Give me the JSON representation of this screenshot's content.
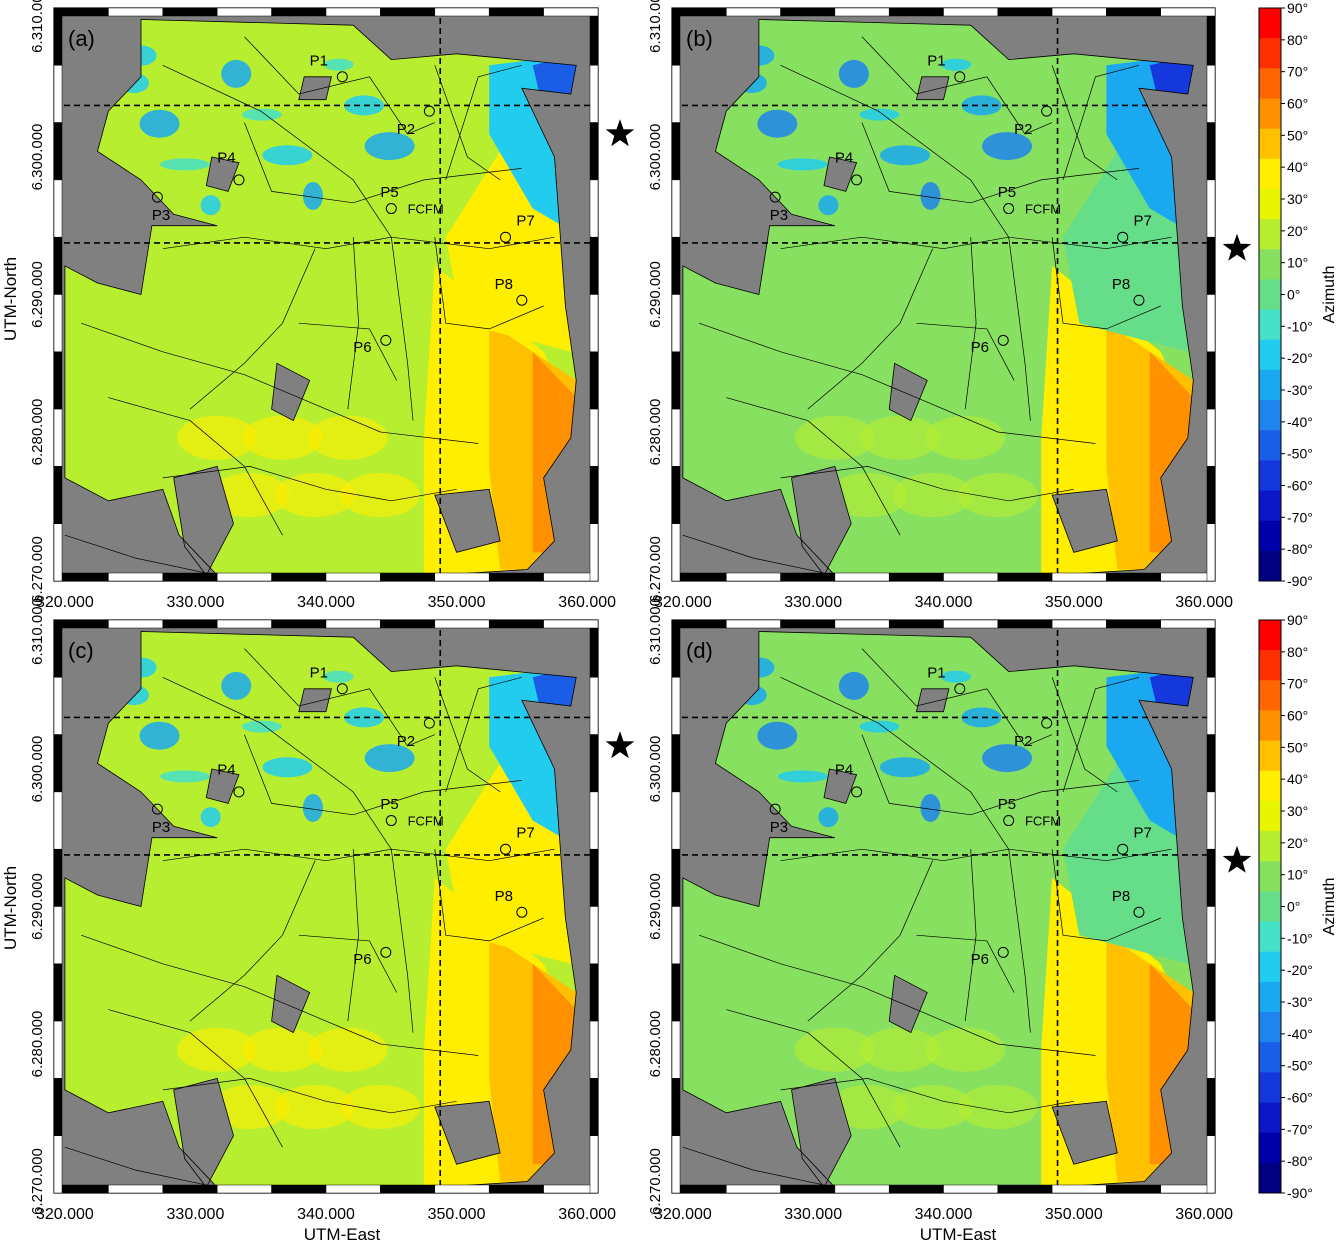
{
  "axes": {
    "x_label": "UTM-East",
    "y_label": "UTM-North",
    "x_ticks": [
      "320.000",
      "330.000",
      "340.000",
      "350.000",
      "360.000"
    ],
    "y_ticks": [
      "6.270.000",
      "6.280.000",
      "6.290.000",
      "6.300.000",
      "6.310.000"
    ]
  },
  "colorbar": {
    "label": "Azimuth",
    "ticks": [
      "90°",
      "80°",
      "70°",
      "60°",
      "50°",
      "40°",
      "30°",
      "20°",
      "10°",
      "0°",
      "-10°",
      "-20°",
      "-30°",
      "-40°",
      "-50°",
      "-60°",
      "-70°",
      "-80°",
      "-90°"
    ],
    "colors": [
      "#ff0000",
      "#ff3000",
      "#ff6600",
      "#ff9000",
      "#ffc000",
      "#ffee00",
      "#e8f500",
      "#b8ee30",
      "#88e060",
      "#66dd88",
      "#44e0c8",
      "#22ccee",
      "#1aa8f0",
      "#1e84ee",
      "#1a5ee8",
      "#1438dc",
      "#0c18c8",
      "#0000a8",
      "#000080"
    ]
  },
  "panels": [
    {
      "label": "(a)",
      "star": "top",
      "eastern_azimuth": 65,
      "ne_azimuth": -45,
      "base_azimuth": 22
    },
    {
      "label": "(b)",
      "star": "bottom",
      "eastern_azimuth": 65,
      "ne_azimuth": -60,
      "base_azimuth": 8
    },
    {
      "label": "(c)",
      "star": "top",
      "eastern_azimuth": 65,
      "ne_azimuth": -45,
      "base_azimuth": 25
    },
    {
      "label": "(d)",
      "star": "bottom",
      "eastern_azimuth": 65,
      "ne_azimuth": -55,
      "base_azimuth": 8
    }
  ],
  "stations": [
    {
      "name": "P1"
    },
    {
      "name": "P2"
    },
    {
      "name": "P3"
    },
    {
      "name": "P4"
    },
    {
      "name": "P5"
    },
    {
      "name": "P6"
    },
    {
      "name": "P7"
    },
    {
      "name": "P8"
    }
  ],
  "site_label": "FCFM"
}
